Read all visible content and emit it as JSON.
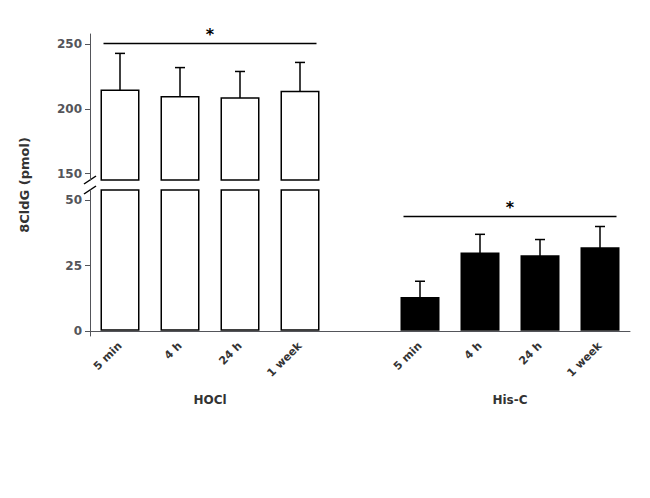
{
  "chart_data": {
    "type": "bar",
    "categories": [
      "5 min",
      "4 h",
      "24 h",
      "1 week",
      null,
      "5 min",
      "4 h",
      "24 h",
      "1 week"
    ],
    "ylabel": "8CldG (pmol)",
    "series": [
      {
        "name": "HOCl",
        "color": "white",
        "axis": "y2",
        "values": [
          215,
          210,
          209,
          214,
          null,
          null,
          null,
          null,
          null
        ],
        "errors": [
          28,
          22,
          20,
          22,
          null,
          null,
          null,
          null,
          null
        ]
      },
      {
        "name": "His-C",
        "color": "black",
        "values": [
          null,
          null,
          null,
          null,
          null,
          13,
          30,
          29,
          32
        ],
        "errors": [
          null,
          null,
          null,
          null,
          null,
          6,
          7,
          6,
          8
        ]
      }
    ],
    "ylim": [
      -2,
      54
    ],
    "yticks": [
      0,
      25,
      50
    ],
    "y2lim": [
      145,
      258
    ],
    "y2ticks": [
      150,
      200,
      250
    ],
    "grid": false,
    "annotations": [
      {
        "text": "*",
        "series": "HOCl"
      },
      {
        "text": "*",
        "series": "His-C"
      }
    ]
  }
}
